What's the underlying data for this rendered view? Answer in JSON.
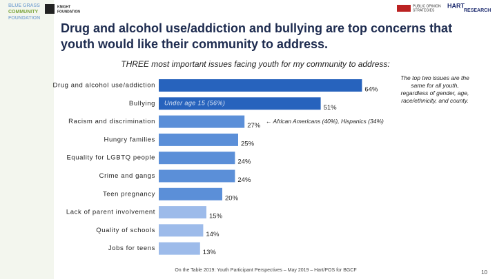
{
  "logos": {
    "left": [
      "BLUE GRASS",
      "COMMUNITY",
      "FOUNDATION"
    ],
    "knight": [
      "KNIGHT",
      "FOUNDATION"
    ],
    "pos": [
      "PUBLIC OPINION",
      "STRATEGIES"
    ],
    "hart": [
      "HART",
      "RESEARCH"
    ]
  },
  "chart_data": {
    "type": "hbar",
    "title": "Drug and alcohol use/addiction and bullying are top concerns that youth would like their community to address.",
    "subtitle": "THREE most important issues facing youth for my community to address:",
    "categories": [
      "Drug and alcohol use/addiction",
      "Bullying",
      "Racism and discrimination",
      "Hungry families",
      "Equality for LGBTQ people",
      "Crime and gangs",
      "Teen pregnancy",
      "Lack of parent involvement",
      "Quality of schools",
      "Jobs for teens"
    ],
    "values": [
      64,
      51,
      27,
      25,
      24,
      24,
      20,
      15,
      14,
      13
    ],
    "value_labels": [
      "64%",
      "51%",
      "27%",
      "25%",
      "24%",
      "24%",
      "20%",
      "15%",
      "14%",
      "13%"
    ],
    "colors": [
      "#2763bd",
      "#2763bd",
      "#5b8fd8",
      "#5b8fd8",
      "#5b8fd8",
      "#5b8fd8",
      "#5b8fd8",
      "#9dbbea",
      "#9dbbea",
      "#9dbbea"
    ],
    "annotations": [
      "Under age 15 (56%)",
      "← African Americans (40%), Hispanics (34%)"
    ],
    "note": "The top two issues are the same for all youth, regardless of gender, age, race/ethnicity, and county."
  },
  "footer": "On the Table 2019: Youth Participant Perspectives – May 2019 – Hart/POS for BGCF",
  "page_number": "10"
}
